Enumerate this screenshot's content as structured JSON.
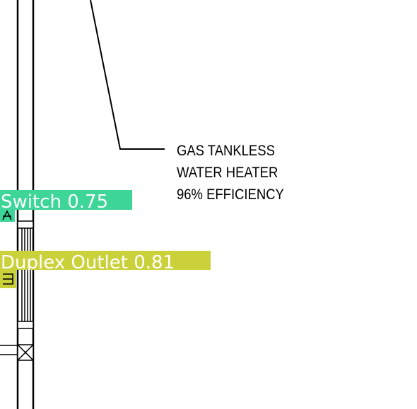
{
  "drawing": {
    "callout": {
      "lines": [
        "GAS TANKLESS",
        "WATER HEATER",
        "96% EFFICIENCY"
      ]
    }
  },
  "detections": [
    {
      "label": "Switch 0.75",
      "color": "#3dd598"
    },
    {
      "label": "Duplex Outlet 0.81",
      "color": "#cbd13a"
    }
  ]
}
